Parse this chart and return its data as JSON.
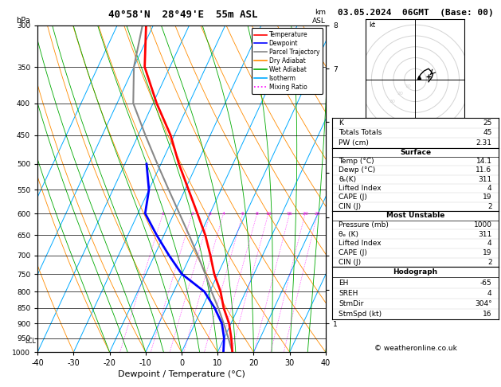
{
  "title_left": "40°58'N  28°49'E  55m ASL",
  "title_date": "03.05.2024  06GMT  (Base: 00)",
  "xlabel": "Dewpoint / Temperature (°C)",
  "ylabel_left": "hPa",
  "pressure_levels": [
    300,
    350,
    400,
    450,
    500,
    550,
    600,
    650,
    700,
    750,
    800,
    850,
    900,
    950,
    1000
  ],
  "temp_profile_p": [
    1000,
    950,
    900,
    850,
    800,
    750,
    700,
    650,
    600,
    550,
    500,
    450,
    400,
    350,
    300
  ],
  "temp_profile_t": [
    14.1,
    12.0,
    9.5,
    6.0,
    3.0,
    -1.0,
    -4.5,
    -8.5,
    -13.5,
    -19.0,
    -25.0,
    -31.0,
    -39.0,
    -47.0,
    -52.0
  ],
  "dewp_profile_p": [
    1000,
    950,
    900,
    850,
    800,
    750,
    700,
    650,
    600,
    550,
    500
  ],
  "dewp_profile_t": [
    11.6,
    10.0,
    7.5,
    3.5,
    -1.5,
    -10.0,
    -16.0,
    -22.0,
    -28.0,
    -30.0,
    -34.0
  ],
  "parcel_profile_p": [
    1000,
    950,
    900,
    850,
    800,
    750,
    700,
    650,
    600,
    550,
    500,
    450,
    400,
    350,
    300
  ],
  "parcel_profile_t": [
    14.1,
    11.2,
    8.0,
    4.5,
    0.5,
    -3.5,
    -8.0,
    -13.0,
    -18.5,
    -24.5,
    -31.0,
    -38.0,
    -45.5,
    -50.0,
    -53.0
  ],
  "lcl_pressure": 960,
  "mixing_ratio_lines": [
    1,
    2,
    3,
    4,
    6,
    8,
    10,
    15,
    20,
    25
  ],
  "km_pressures": [
    900,
    795,
    700,
    608,
    517,
    428,
    352,
    300
  ],
  "km_labels": [
    "1",
    "2",
    "3",
    "4",
    "5",
    "6",
    "7",
    "8"
  ],
  "colors": {
    "temperature": "#FF0000",
    "dewpoint": "#0000FF",
    "parcel": "#888888",
    "dry_adiabat": "#FF8C00",
    "wet_adiabat": "#00AA00",
    "isotherm": "#00AAFF",
    "mixing_ratio": "#FF00FF",
    "background": "#FFFFFF",
    "grid": "#000000"
  },
  "info_panel": {
    "K": 25,
    "Totals_Totals": 45,
    "PW_cm": "2.31",
    "Surface_Temp": "14.1",
    "Surface_Dewp": "11.6",
    "Surface_theta_e": 311,
    "Surface_LI": 4,
    "Surface_CAPE": 19,
    "Surface_CIN": 2,
    "MU_Pressure": 1000,
    "MU_theta_e": 311,
    "MU_LI": 4,
    "MU_CAPE": 19,
    "MU_CIN": 2,
    "Hodograph_EH": -65,
    "Hodograph_SREH": 4,
    "Hodograph_StmDir": "304°",
    "Hodograph_StmSpd": 16
  },
  "legend_items": [
    {
      "label": "Temperature",
      "color": "#FF0000",
      "ls": "-"
    },
    {
      "label": "Dewpoint",
      "color": "#0000FF",
      "ls": "-"
    },
    {
      "label": "Parcel Trajectory",
      "color": "#888888",
      "ls": "-"
    },
    {
      "label": "Dry Adiabat",
      "color": "#FF8C00",
      "ls": "-"
    },
    {
      "label": "Wet Adiabat",
      "color": "#00AA00",
      "ls": "-"
    },
    {
      "label": "Isotherm",
      "color": "#00AAFF",
      "ls": "-"
    },
    {
      "label": "Mixing Ratio",
      "color": "#FF00FF",
      "ls": ":"
    }
  ]
}
